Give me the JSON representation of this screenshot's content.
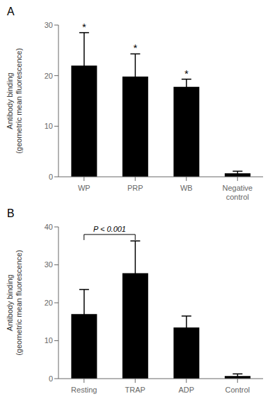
{
  "chart_data": [
    {
      "type": "bar",
      "title": "A",
      "categories": [
        "WP",
        "PRP",
        "WB",
        "Negative\ncontrol"
      ],
      "values": [
        22.0,
        19.8,
        17.8,
        0.7
      ],
      "errors": [
        6.5,
        4.5,
        1.5,
        0.4
      ],
      "color": "#000000",
      "ylabel": "Antibody binding\n(geometric mean fluorescence)",
      "ylim": [
        0,
        30
      ],
      "yticks": [
        0,
        10,
        20,
        30
      ],
      "grid": false,
      "annotations": [
        {
          "x": "WP",
          "text": "*"
        },
        {
          "x": "PRP",
          "text": "*"
        },
        {
          "x": "WB",
          "text": "*"
        }
      ]
    },
    {
      "type": "bar",
      "title": "B",
      "categories": [
        "Resting",
        "TRAP",
        "ADP",
        "Control"
      ],
      "values": [
        17.0,
        27.8,
        13.5,
        0.7
      ],
      "errors": [
        6.5,
        8.5,
        3.0,
        0.55
      ],
      "color": "#000000",
      "ylabel": "Antibody binding\n(geometric mean fluorescence)",
      "ylim": [
        0,
        40
      ],
      "yticks": [
        0,
        10,
        20,
        30,
        40
      ],
      "grid": false,
      "annotations": [
        {
          "x1": "Resting",
          "x2": "TRAP",
          "y": 38.0,
          "text": "P < 0.001"
        }
      ]
    }
  ]
}
